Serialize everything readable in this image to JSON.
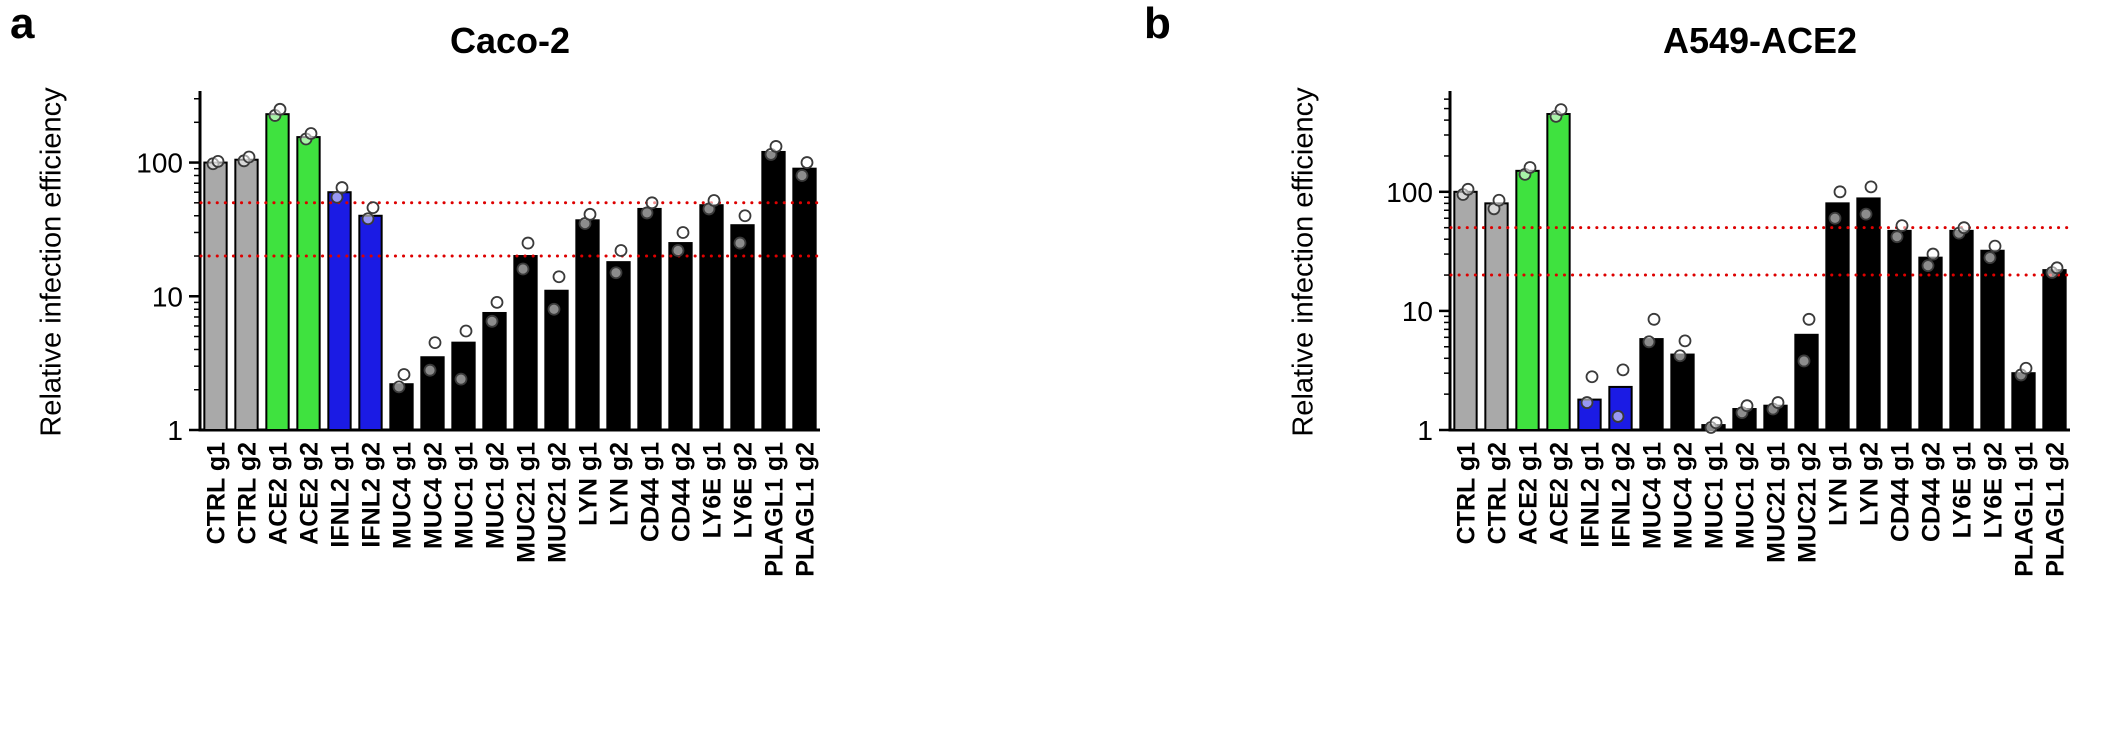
{
  "figure": {
    "background": "#ffffff",
    "accent_colors": {
      "control_gray": "#a9a9a9",
      "ace2_green": "#3fe23f",
      "ifnl2_blue": "#1b1be4",
      "default_black": "#000000",
      "reference_red": "#dd0000"
    }
  },
  "chart_data": [
    {
      "type": "bar",
      "panel_letter": "a",
      "title": "Caco-2",
      "ylabel": "Relative infection efficiency",
      "xlabel": "",
      "yscale": "log",
      "ylim": [
        1,
        320
      ],
      "yticks": [
        1,
        10,
        100
      ],
      "grid": false,
      "legend": "none",
      "reference_lines": [
        20,
        50
      ],
      "reference_line_color": "#dd0000",
      "categories": [
        "CTRL g1",
        "CTRL g2",
        "ACE2 g1",
        "ACE2 g2",
        "IFNL2 g1",
        "IFNL2 g2",
        "MUC4 g1",
        "MUC4 g2",
        "MUC1 g1",
        "MUC1 g2",
        "MUC21 g1",
        "MUC21 g2",
        "LYN g1",
        "LYN g2",
        "CD44 g1",
        "CD44 g2",
        "LY6E g1",
        "LY6E g2",
        "PLAGL1 g1",
        "PLAGL1 g2"
      ],
      "values": [
        100,
        105,
        230,
        155,
        60,
        40,
        2.2,
        3.5,
        4.5,
        7.5,
        20,
        11,
        37,
        18,
        45,
        25,
        48,
        34,
        120,
        90
      ],
      "replicates": [
        [
          98,
          102
        ],
        [
          103,
          110
        ],
        [
          225,
          250
        ],
        [
          150,
          165
        ],
        [
          55,
          65
        ],
        [
          38,
          46
        ],
        [
          2.1,
          2.6
        ],
        [
          2.8,
          4.5
        ],
        [
          2.4,
          5.5
        ],
        [
          6.5,
          9.0
        ],
        [
          16,
          25
        ],
        [
          8,
          14
        ],
        [
          35,
          41
        ],
        [
          15,
          22
        ],
        [
          42,
          50
        ],
        [
          22,
          30
        ],
        [
          45,
          52
        ],
        [
          25,
          40
        ],
        [
          115,
          132
        ],
        [
          80,
          100
        ]
      ],
      "bar_colors": [
        "#a9a9a9",
        "#a9a9a9",
        "#3fe23f",
        "#3fe23f",
        "#1b1be4",
        "#1b1be4",
        "#000000",
        "#000000",
        "#000000",
        "#000000",
        "#000000",
        "#000000",
        "#000000",
        "#000000",
        "#000000",
        "#000000",
        "#000000",
        "#000000",
        "#000000",
        "#000000"
      ]
    },
    {
      "type": "bar",
      "panel_letter": "b",
      "title": "A549-ACE2",
      "ylabel": "Relative infection efficiency",
      "xlabel": "",
      "yscale": "log",
      "ylim": [
        1,
        650
      ],
      "yticks": [
        1,
        10,
        100
      ],
      "grid": false,
      "legend": "none",
      "reference_lines": [
        20,
        50
      ],
      "reference_line_color": "#dd0000",
      "categories": [
        "CTRL g1",
        "CTRL g2",
        "ACE2 g1",
        "ACE2 g2",
        "IFNL2 g1",
        "IFNL2 g2",
        "MUC4 g1",
        "MUC4 g2",
        "MUC1 g1",
        "MUC1 g2",
        "MUC21 g1",
        "MUC21 g2",
        "LYN g1",
        "LYN g2",
        "CD44 g1",
        "CD44 g2",
        "LY6E g1",
        "LY6E g2",
        "PLAGL1 g1",
        "PLAGL1 g2"
      ],
      "values": [
        100,
        80,
        150,
        450,
        1.8,
        2.3,
        5.8,
        4.3,
        1.1,
        1.5,
        1.6,
        6.3,
        80,
        88,
        47,
        28,
        47,
        32,
        3.0,
        22
      ],
      "replicates": [
        [
          95,
          105
        ],
        [
          72,
          85
        ],
        [
          140,
          160
        ],
        [
          430,
          490
        ],
        [
          1.7,
          2.8
        ],
        [
          1.3,
          3.2
        ],
        [
          5.5,
          8.5
        ],
        [
          4.2,
          5.6
        ],
        [
          1.05,
          1.15
        ],
        [
          1.4,
          1.6
        ],
        [
          1.5,
          1.7
        ],
        [
          3.8,
          8.5
        ],
        [
          60,
          100
        ],
        [
          65,
          110
        ],
        [
          42,
          52
        ],
        [
          24,
          30
        ],
        [
          45,
          50
        ],
        [
          28,
          35
        ],
        [
          2.9,
          3.3
        ],
        [
          21,
          23
        ]
      ],
      "bar_colors": [
        "#a9a9a9",
        "#a9a9a9",
        "#3fe23f",
        "#3fe23f",
        "#1b1be4",
        "#1b1be4",
        "#000000",
        "#000000",
        "#000000",
        "#000000",
        "#000000",
        "#000000",
        "#000000",
        "#000000",
        "#000000",
        "#000000",
        "#000000",
        "#000000",
        "#000000",
        "#000000"
      ]
    }
  ]
}
